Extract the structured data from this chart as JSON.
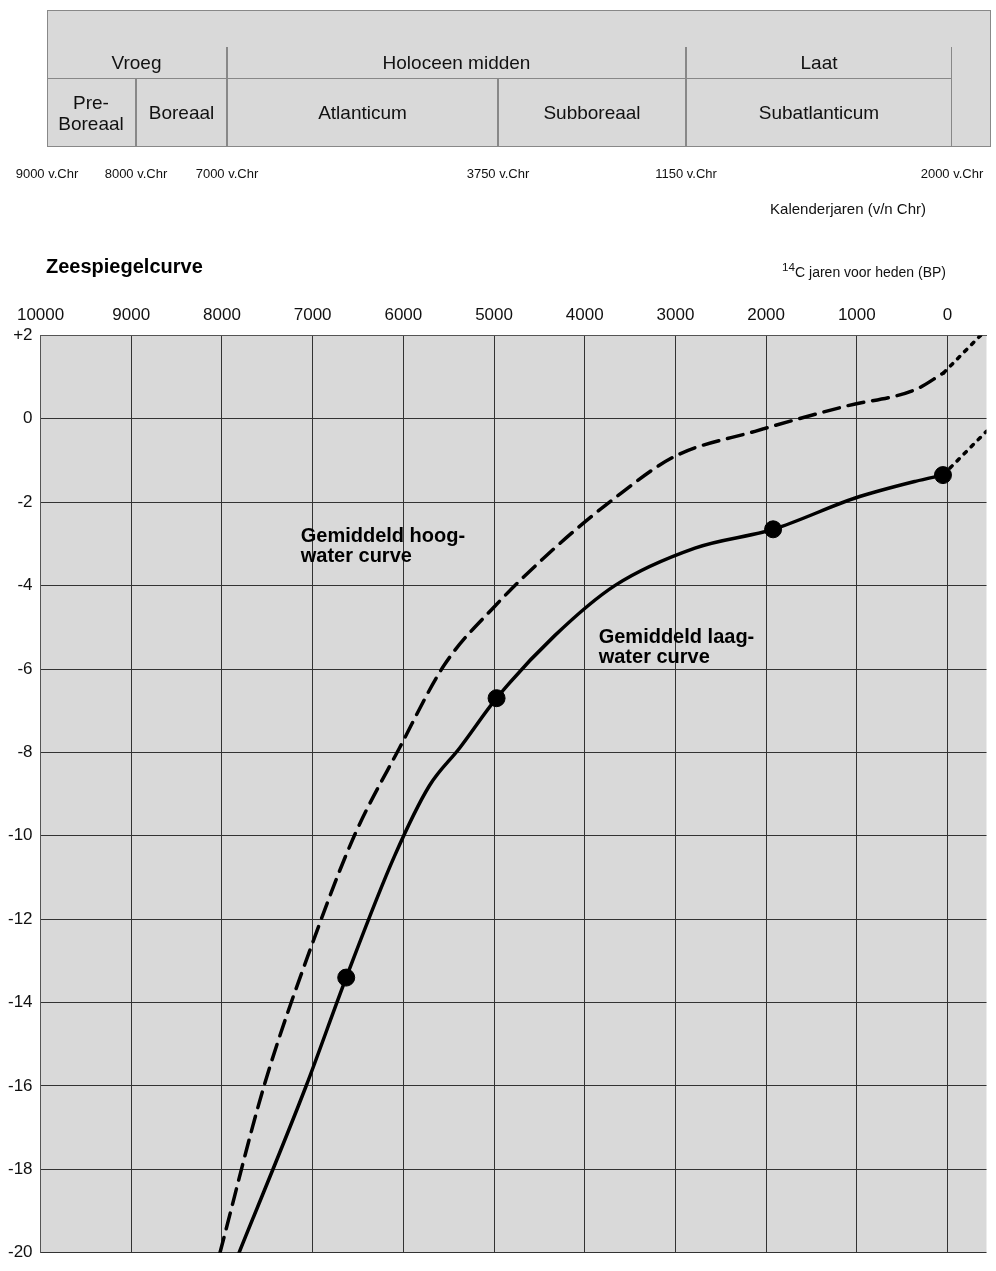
{
  "chart_data": [
    {
      "type": "other",
      "xlabel": "Kalenderjaren (v/n Chr)",
      "annotations": [
        "Vroeg",
        "Holoceen midden",
        "Laat",
        "Pre-Boreaal",
        "Boreaal",
        "Atlanticum",
        "Subboreaal",
        "Subatlanticum",
        "9000 v.Chr",
        "8000 v.Chr",
        "7000 v.Chr",
        "3750 v.Chr",
        "1150 v.Chr",
        "2000 v.Chr"
      ]
    },
    {
      "type": "line",
      "title": "Zeespiegelcurve",
      "xlabel": "$^{14}$C jaren voor heden (BP)",
      "xlim": [
        10000,
        -430
      ],
      "xticks": [
        10000,
        9000,
        8000,
        7000,
        6000,
        5000,
        4000,
        3000,
        2000,
        1000,
        0
      ],
      "ylim": [
        -20,
        2
      ],
      "yticks": [
        -20,
        -18,
        -16,
        -14,
        -12,
        -10,
        -8,
        -6,
        -4,
        -2,
        0,
        {
          "value": 2,
          "label": "+2"
        }
      ],
      "grid": true,
      "legend": false,
      "series": [
        {
          "name": "Gemiddeld hoog-water curve",
          "type": "line",
          "line_style": "dashed",
          "color": "#000000",
          "x": [
            8022,
            7536,
            7006,
            6541,
            6044,
            5547,
            4994,
            4331,
            3669,
            3006,
            2122,
            1127,
            354,
            44
          ],
          "values": [
            -20,
            -16,
            -12.6,
            -10,
            -7.9,
            -5.9,
            -4.5,
            -3.1,
            -1.9,
            -0.9,
            -0.3,
            0.3,
            0.7,
            1.1
          ]
        },
        {
          "type": "line",
          "line_style": "dotted",
          "color": "#000000",
          "x": [
            44,
            -365
          ],
          "values": [
            1.1,
            2
          ]
        },
        {
          "name": "Gemiddeld laag-water curve",
          "type": "line",
          "line_style": "solid",
          "color": "#000000",
          "x": [
            7812,
            7072,
            6630,
            6100,
            5713,
            5381,
            4972,
            4331,
            3669,
            2785,
            1923,
            1017,
            354,
            50
          ],
          "values": [
            -20,
            -16,
            -13.4,
            -10.5,
            -8.8,
            -7.9,
            -6.7,
            -5.2,
            -4,
            -3.1,
            -2.65,
            -1.9,
            -1.5,
            -1.35
          ]
        },
        {
          "type": "line",
          "line_style": "dotted",
          "color": "#000000",
          "x": [
            50,
            -430
          ],
          "values": [
            -1.35,
            -0.3
          ]
        },
        {
          "type": "scatter",
          "marker": "circle",
          "color": "#000000",
          "x": [
            6630,
            4972,
            1923,
            50
          ],
          "values": [
            -13.4,
            -6.7,
            -2.65,
            -1.35
          ]
        }
      ]
    }
  ]
}
